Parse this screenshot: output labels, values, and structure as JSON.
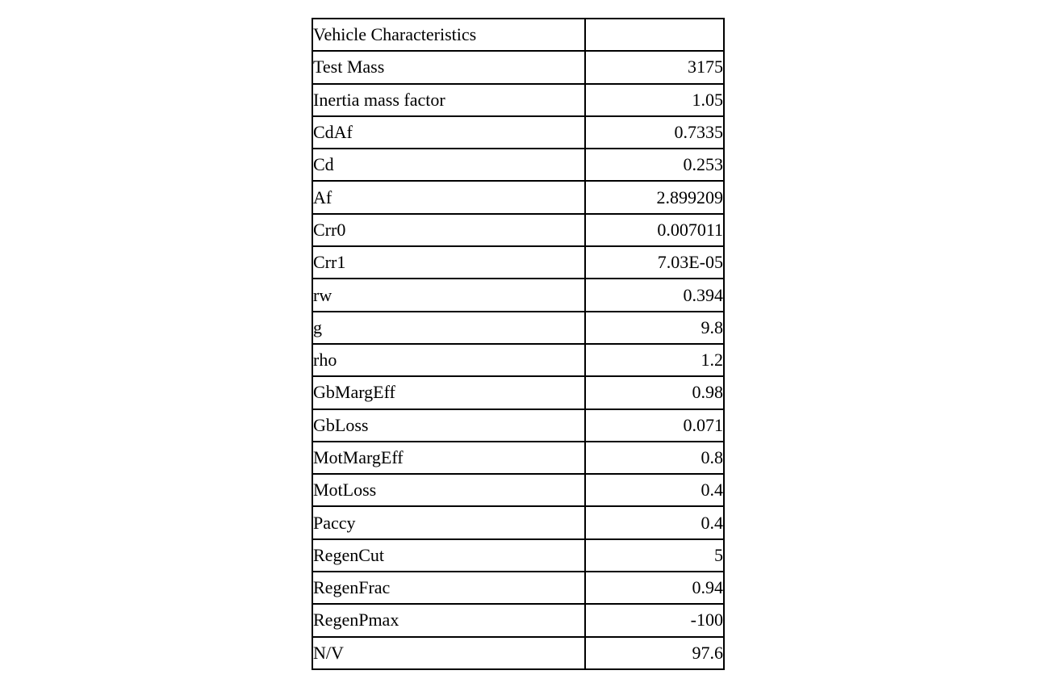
{
  "colors": {
    "background": "#ffffff",
    "table_border": "#000000",
    "text": "#000000"
  },
  "table": {
    "header": {
      "label": "Vehicle Characteristics",
      "value": ""
    },
    "rows": [
      {
        "label": "Test Mass",
        "value": "3175"
      },
      {
        "label": "Inertia mass factor",
        "value": "1.05"
      },
      {
        "label": "CdAf",
        "value": "0.7335"
      },
      {
        "label": "Cd",
        "value": "0.253"
      },
      {
        "label": "Af",
        "value": "2.899209"
      },
      {
        "label": "Crr0",
        "value": "0.007011"
      },
      {
        "label": "Crr1",
        "value": "7.03E-05"
      },
      {
        "label": "rw",
        "value": "0.394"
      },
      {
        "label": "g",
        "value": "9.8"
      },
      {
        "label": "rho",
        "value": "1.2"
      },
      {
        "label": "GbMargEff",
        "value": "0.98"
      },
      {
        "label": "GbLoss",
        "value": "0.071"
      },
      {
        "label": "MotMargEff",
        "value": "0.8"
      },
      {
        "label": "MotLoss",
        "value": "0.4"
      },
      {
        "label": "Paccy",
        "value": "0.4"
      },
      {
        "label": "RegenCut",
        "value": "5"
      },
      {
        "label": "RegenFrac",
        "value": "0.94"
      },
      {
        "label": "RegenPmax",
        "value": "-100"
      },
      {
        "label": "N/V",
        "value": "97.6"
      }
    ]
  }
}
